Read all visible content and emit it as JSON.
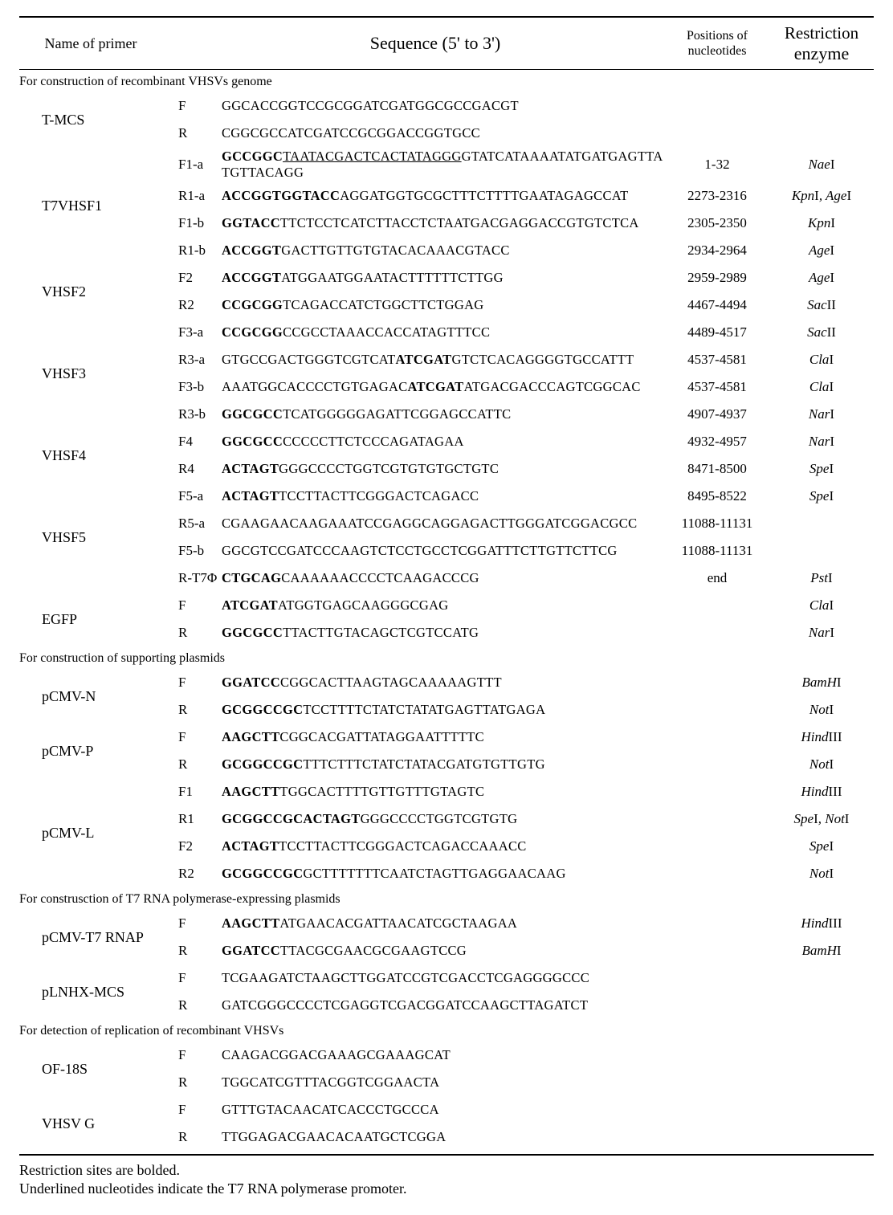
{
  "headers": {
    "primer": "Name of primer",
    "sequence": "Sequence (5' to 3')",
    "positions_line1": "Positions of",
    "positions_line2": "nucleotides",
    "enzyme_line1": "Restriction",
    "enzyme_line2": "enzyme"
  },
  "sections": [
    {
      "title": "For construction of recombinant VHSVs genome",
      "groups": [
        {
          "name": "T-MCS",
          "rows": [
            {
              "dir": "F",
              "seq": "GGCACCGGTCCGCGGATCGATGGCGCCGACGT",
              "pos": "",
              "enz": ""
            },
            {
              "dir": "R",
              "seq": "CGGCGCCATCGATCCGCGGACCGGTGCC",
              "pos": "",
              "enz": ""
            }
          ]
        },
        {
          "name": "T7VHSF1",
          "rows": [
            {
              "dir": "F1-a",
              "seq": "<b>GCCGGC</b><u>TAATACGACTCACTATAGGG</u>GTATCATAAAATATGATGAGTTATGTTACAGG",
              "pos": "1-32",
              "enz": "NaeI"
            },
            {
              "dir": "R1-a",
              "seq": "<b>ACCGGTGGTACC</b>AGGATGGTGCGCTTTCTTTTGAATAGAGCCAT",
              "pos": "2273-2316",
              "enz": "KpnI, AgeI"
            },
            {
              "dir": "F1-b",
              "seq": "<b>GGTACC</b>TTCTCCTCATCTTACCTCTAATGACGAGGACCGTGTCTCA",
              "pos": "2305-2350",
              "enz": "KpnI"
            },
            {
              "dir": "R1-b",
              "seq": "<b>ACCGGT</b>GACTTGTTGTGTACACAAACGTACC",
              "pos": "2934-2964",
              "enz": "AgeI"
            }
          ]
        },
        {
          "name": "VHSF2",
          "rows": [
            {
              "dir": "F2",
              "seq": "<b>ACCGGT</b>ATGGAATGGAATACTTTTTTCTTGG",
              "pos": "2959-2989",
              "enz": "AgeI"
            },
            {
              "dir": "R2",
              "seq": "<b>CCGCGG</b>TCAGACCATCTGGCTTCTGGAG",
              "pos": "4467-4494",
              "enz": "SacII"
            }
          ]
        },
        {
          "name": "VHSF3",
          "rows": [
            {
              "dir": "F3-a",
              "seq": "<b>CCGCGG</b>CCGCCTAAACCACCATAGTTTCC",
              "pos": "4489-4517",
              "enz": "SacII"
            },
            {
              "dir": "R3-a",
              "seq": "GTGCCGACTGGGTCGTCAT<b>ATCGAT</b>GTCTCACAGGGGTGCCATTT",
              "pos": "4537-4581",
              "enz": "ClaI"
            },
            {
              "dir": "F3-b",
              "seq": "AAATGGCACCCCTGTGAGAC<b>ATCGAT</b>ATGACGACCCAGTCGGCAC",
              "pos": "4537-4581",
              "enz": "ClaI"
            },
            {
              "dir": "R3-b",
              "seq": "<b>GGCGCC</b>TCATGGGGGAGATTCGGAGCCATTC",
              "pos": "4907-4937",
              "enz": "NarI"
            }
          ]
        },
        {
          "name": "VHSF4",
          "rows": [
            {
              "dir": "F4",
              "seq": "<b>GGCGCC</b>CCCCCTTCTCCCAGATAGAA",
              "pos": "4932-4957",
              "enz": "NarI"
            },
            {
              "dir": "R4",
              "seq": "<b>ACTAGT</b>GGGCCCCTGGTCGTGTGTGCTGTC",
              "pos": "8471-8500",
              "enz": "SpeI"
            }
          ]
        },
        {
          "name": "VHSF5",
          "rows": [
            {
              "dir": "F5-a",
              "seq": "<b>ACTAGT</b>TCCTTACTTCGGGACTCAGACC",
              "pos": "8495-8522",
              "enz": "SpeI"
            },
            {
              "dir": "R5-a",
              "seq": "CGAAGAACAAGAAATCCGAGGCAGGAGACTTGGGATCGGACGCC",
              "pos": "11088-11131",
              "enz": ""
            },
            {
              "dir": "F5-b",
              "seq": "GGCGTCCGATCCCAAGTCTCCTGCCTCGGATTTCTTGTTCTTCG",
              "pos": "11088-11131",
              "enz": ""
            },
            {
              "dir": "R-T7Φ",
              "seq": "<b>CTGCAG</b>CAAAAAACCCCTCAAGACCCG",
              "pos": "end",
              "enz": "PstI"
            }
          ]
        },
        {
          "name": "EGFP",
          "rows": [
            {
              "dir": "F",
              "seq": "<b>ATCGAT</b>ATGGTGAGCAAGGGCGAG",
              "pos": "",
              "enz": "ClaI"
            },
            {
              "dir": "R",
              "seq": "<b>GGCGCC</b>TTACTTGTACAGCTCGTCCATG",
              "pos": "",
              "enz": "NarI"
            }
          ]
        }
      ]
    },
    {
      "title": "For construction of supporting plasmids",
      "groups": [
        {
          "name": "pCMV-N",
          "rows": [
            {
              "dir": "F",
              "seq": "<b>GGATCC</b>CGGCACTTAAGTAGCAAAAAGTTT",
              "pos": "",
              "enz": "BamHI"
            },
            {
              "dir": "R",
              "seq": "<b>GCGGCCGC</b>TCCTTTTCTATCTATATGAGTTATGAGA",
              "pos": "",
              "enz": "NotI"
            }
          ]
        },
        {
          "name": "pCMV-P",
          "rows": [
            {
              "dir": "F",
              "seq": "<b>AAGCTT</b>CGGCACGATTATAGGAATTTTTC",
              "pos": "",
              "enz": "HindIII"
            },
            {
              "dir": "R",
              "seq": "<b>GCGGCCGC</b>TTTCTTTCTATCTATACGATGTGTTGTG",
              "pos": "",
              "enz": "NotI"
            }
          ]
        },
        {
          "name": "pCMV-L",
          "rows": [
            {
              "dir": "F1",
              "seq": "<b>AAGCTT</b>TGGCACTTTTGTTGTTTGTAGTC",
              "pos": "",
              "enz": "HindIII"
            },
            {
              "dir": "R1",
              "seq": "<b>GCGGCCGCACTAGT</b>GGGCCCCTGGTCGTGTG",
              "pos": "",
              "enz": "SpeI, NotI"
            },
            {
              "dir": "F2",
              "seq": "<b>ACTAGT</b>TCCTTACTTCGGGACTCAGACCAAACC",
              "pos": "",
              "enz": "SpeI"
            },
            {
              "dir": "R2",
              "seq": "<b>GCGGCCGC</b>GCTTTTTTTCAATCTAGTTGAGGAACAAG",
              "pos": "",
              "enz": "NotI"
            }
          ]
        }
      ]
    },
    {
      "title": "For construsction of T7 RNA polymerase-expressing plasmids",
      "groups": [
        {
          "name": "pCMV-T7 RNAP",
          "rows": [
            {
              "dir": "F",
              "seq": "<b>AAGCTT</b>ATGAACACGATTAACATCGCTAAGAA",
              "pos": "",
              "enz": "HindIII"
            },
            {
              "dir": "R",
              "seq": "<b>GGATCC</b>TTACGCGAACGCGAAGTCCG",
              "pos": "",
              "enz": "BamHI"
            }
          ]
        },
        {
          "name": "pLNHX-MCS",
          "rows": [
            {
              "dir": "F",
              "seq": "TCGAAGATCTAAGCTTGGATCCGTCGACCTCGAGGGGCCC",
              "pos": "",
              "enz": ""
            },
            {
              "dir": "R",
              "seq": "GATCGGGCCCCTCGAGGTCGACGGATCCAAGCTTAGATCT",
              "pos": "",
              "enz": ""
            }
          ]
        }
      ]
    },
    {
      "title": "For detection of replication of recombinant VHSVs",
      "groups": [
        {
          "name": "OF-18S",
          "rows": [
            {
              "dir": "F",
              "seq": "CAAGACGGACGAAAGCGAAAGCAT",
              "pos": "",
              "enz": ""
            },
            {
              "dir": "R",
              "seq": "TGGCATCGTTTACGGTCGGAACTA",
              "pos": "",
              "enz": ""
            }
          ]
        },
        {
          "name": "VHSV G",
          "rows": [
            {
              "dir": "F",
              "seq": "GTTTGTACAACATCACCCTGCCCA",
              "pos": "",
              "enz": ""
            },
            {
              "dir": "R",
              "seq": "TTGGAGACGAACACAATGCTCGGA",
              "pos": "",
              "enz": ""
            }
          ]
        }
      ]
    }
  ],
  "footnotes": {
    "line1": "Restriction sites are bolded.",
    "line2": "Underlined nucleotides indicate the T7 RNA polymerase promoter."
  }
}
